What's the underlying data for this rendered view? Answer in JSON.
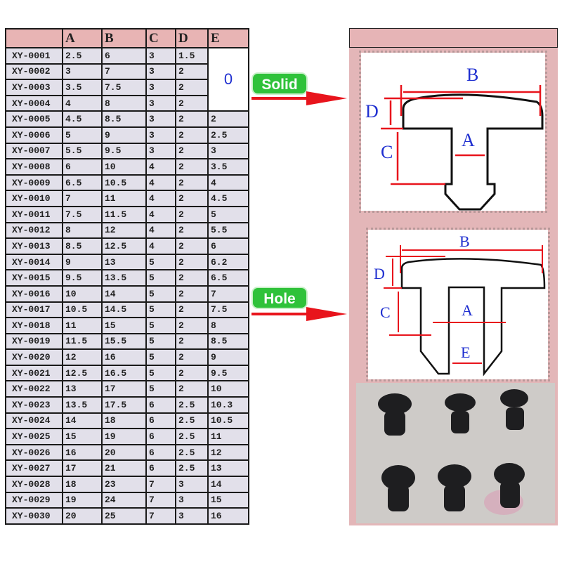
{
  "table": {
    "headers": [
      "",
      "A",
      "B",
      "C",
      "D",
      "E"
    ],
    "merged_e_value": "0",
    "rows": [
      [
        "XY-0001",
        "2.5",
        "6",
        "3",
        "1.5",
        null
      ],
      [
        "XY-0002",
        "3",
        "7",
        "3",
        "2",
        null
      ],
      [
        "XY-0003",
        "3.5",
        "7.5",
        "3",
        "2",
        null
      ],
      [
        "XY-0004",
        "4",
        "8",
        "3",
        "2",
        null
      ],
      [
        "XY-0005",
        "4.5",
        "8.5",
        "3",
        "2",
        "2"
      ],
      [
        "XY-0006",
        "5",
        "9",
        "3",
        "2",
        "2.5"
      ],
      [
        "XY-0007",
        "5.5",
        "9.5",
        "3",
        "2",
        "3"
      ],
      [
        "XY-0008",
        "6",
        "10",
        "4",
        "2",
        "3.5"
      ],
      [
        "XY-0009",
        "6.5",
        "10.5",
        "4",
        "2",
        "4"
      ],
      [
        "XY-0010",
        "7",
        "11",
        "4",
        "2",
        "4.5"
      ],
      [
        "XY-0011",
        "7.5",
        "11.5",
        "4",
        "2",
        "5"
      ],
      [
        "XY-0012",
        "8",
        "12",
        "4",
        "2",
        "5.5"
      ],
      [
        "XY-0013",
        "8.5",
        "12.5",
        "4",
        "2",
        "6"
      ],
      [
        "XY-0014",
        "9",
        "13",
        "5",
        "2",
        "6.2"
      ],
      [
        "XY-0015",
        "9.5",
        "13.5",
        "5",
        "2",
        "6.5"
      ],
      [
        "XY-0016",
        "10",
        "14",
        "5",
        "2",
        "7"
      ],
      [
        "XY-0017",
        "10.5",
        "14.5",
        "5",
        "2",
        "7.5"
      ],
      [
        "XY-0018",
        "11",
        "15",
        "5",
        "2",
        "8"
      ],
      [
        "XY-0019",
        "11.5",
        "15.5",
        "5",
        "2",
        "8.5"
      ],
      [
        "XY-0020",
        "12",
        "16",
        "5",
        "2",
        "9"
      ],
      [
        "XY-0021",
        "12.5",
        "16.5",
        "5",
        "2",
        "9.5"
      ],
      [
        "XY-0022",
        "13",
        "17",
        "5",
        "2",
        "10"
      ],
      [
        "XY-0023",
        "13.5",
        "17.5",
        "6",
        "2.5",
        "10.3"
      ],
      [
        "XY-0024",
        "14",
        "18",
        "6",
        "2.5",
        "10.5"
      ],
      [
        "XY-0025",
        "15",
        "19",
        "6",
        "2.5",
        "11"
      ],
      [
        "XY-0026",
        "16",
        "20",
        "6",
        "2.5",
        "12"
      ],
      [
        "XY-0027",
        "17",
        "21",
        "6",
        "2.5",
        "13"
      ],
      [
        "XY-0028",
        "18",
        "23",
        "7",
        "3",
        "14"
      ],
      [
        "XY-0029",
        "19",
        "24",
        "7",
        "3",
        "15"
      ],
      [
        "XY-0030",
        "20",
        "25",
        "7",
        "3",
        "16"
      ]
    ]
  },
  "labels": {
    "solid": "Solid",
    "hole": "Hole"
  },
  "diagram_solid": {
    "B": "B",
    "D": "D",
    "C": "C",
    "A": "A"
  },
  "diagram_hole": {
    "B": "B",
    "D": "D",
    "C": "C",
    "A": "A",
    "E": "E"
  },
  "colors": {
    "header_pink": "#e8b4b4",
    "row_bg": "#e2e0ea",
    "badge_green": "#2fc23a",
    "dimension_red": "#e8141c",
    "letter_blue": "#1f2fd0"
  }
}
